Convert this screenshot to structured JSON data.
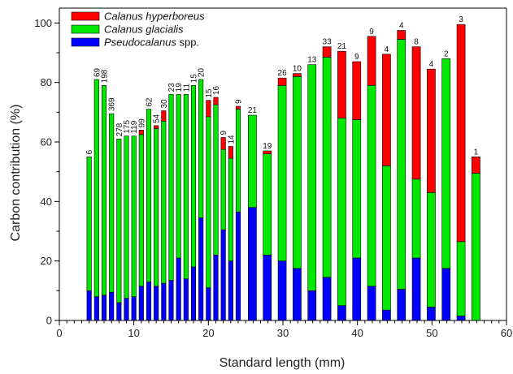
{
  "chart_data": {
    "type": "bar",
    "stacked": true,
    "title": "",
    "xlabel": "Standard length (mm)",
    "ylabel": "Carbon contribution (%)",
    "xlim": [
      0,
      60
    ],
    "ylim": [
      0,
      105
    ],
    "x_major_ticks": [
      0,
      10,
      20,
      30,
      40,
      50,
      60
    ],
    "x_tick_labels": [
      "0",
      "10",
      "20",
      "30",
      "40",
      "50",
      "60"
    ],
    "y_major_ticks": [
      0,
      20,
      40,
      60,
      80,
      100
    ],
    "y_tick_labels": [
      "0",
      "20",
      "40",
      "60",
      "80",
      "100"
    ],
    "x_minor_step": 1,
    "y_minor_step": 10,
    "grid": false,
    "legend_placement": "top-left",
    "legend": [
      {
        "italic": "Calanus hyperboreus",
        "suffix": "",
        "color": "#ff0000"
      },
      {
        "italic": "Calanus glacialis",
        "suffix": "",
        "color": "#00e800"
      },
      {
        "italic": "Pseudocalanus",
        "suffix": " spp.",
        "color": "#0000ff"
      }
    ],
    "bars": [
      {
        "x": 4,
        "width": 0.6,
        "pseudocalanus": 10,
        "glacialis": 45,
        "hyperboreus": 0,
        "label": "6"
      },
      {
        "x": 5,
        "width": 0.6,
        "pseudocalanus": 8,
        "glacialis": 73,
        "hyperboreus": 0,
        "label": "69"
      },
      {
        "x": 6,
        "width": 0.6,
        "pseudocalanus": 8.5,
        "glacialis": 70.5,
        "hyperboreus": 0,
        "label": "198"
      },
      {
        "x": 7,
        "width": 0.6,
        "pseudocalanus": 9.5,
        "glacialis": 60,
        "hyperboreus": 0,
        "label": "369"
      },
      {
        "x": 8,
        "width": 0.6,
        "pseudocalanus": 6,
        "glacialis": 55,
        "hyperboreus": 0,
        "label": "278"
      },
      {
        "x": 9,
        "width": 0.6,
        "pseudocalanus": 7.5,
        "glacialis": 54.5,
        "hyperboreus": 0,
        "label": "175"
      },
      {
        "x": 10,
        "width": 0.6,
        "pseudocalanus": 8,
        "glacialis": 54,
        "hyperboreus": 0,
        "label": "119"
      },
      {
        "x": 11,
        "width": 0.6,
        "pseudocalanus": 11.5,
        "glacialis": 51,
        "hyperboreus": 1.5,
        "label": "99"
      },
      {
        "x": 12,
        "width": 0.6,
        "pseudocalanus": 13,
        "glacialis": 58,
        "hyperboreus": 0,
        "label": "62"
      },
      {
        "x": 13,
        "width": 0.6,
        "pseudocalanus": 11.5,
        "glacialis": 53,
        "hyperboreus": 1,
        "label": "54"
      },
      {
        "x": 14,
        "width": 0.6,
        "pseudocalanus": 12.5,
        "glacialis": 54.5,
        "hyperboreus": 3.5,
        "label": "30"
      },
      {
        "x": 15,
        "width": 0.6,
        "pseudocalanus": 13.5,
        "glacialis": 62.5,
        "hyperboreus": 0,
        "label": "23"
      },
      {
        "x": 16,
        "width": 0.6,
        "pseudocalanus": 21,
        "glacialis": 55,
        "hyperboreus": 0,
        "label": "19"
      },
      {
        "x": 17,
        "width": 0.6,
        "pseudocalanus": 14,
        "glacialis": 62,
        "hyperboreus": 0,
        "label": "11"
      },
      {
        "x": 18,
        "width": 0.6,
        "pseudocalanus": 18,
        "glacialis": 61,
        "hyperboreus": 0,
        "label": "15"
      },
      {
        "x": 19,
        "width": 0.6,
        "pseudocalanus": 34.5,
        "glacialis": 46.5,
        "hyperboreus": 0,
        "label": "20"
      },
      {
        "x": 20,
        "width": 0.6,
        "pseudocalanus": 11,
        "glacialis": 57.5,
        "hyperboreus": 5.5,
        "label": "15"
      },
      {
        "x": 21,
        "width": 0.6,
        "pseudocalanus": 22,
        "glacialis": 50.5,
        "hyperboreus": 2.5,
        "label": "16"
      },
      {
        "x": 22,
        "width": 0.6,
        "pseudocalanus": 30.5,
        "glacialis": 27,
        "hyperboreus": 4,
        "label": "9"
      },
      {
        "x": 23,
        "width": 0.6,
        "pseudocalanus": 20,
        "glacialis": 34.5,
        "hyperboreus": 4,
        "label": "14"
      },
      {
        "x": 24,
        "width": 0.6,
        "pseudocalanus": 36.5,
        "glacialis": 34.5,
        "hyperboreus": 1,
        "label": "9"
      },
      {
        "x": 25.9,
        "width": 1.1,
        "pseudocalanus": 38,
        "glacialis": 31,
        "hyperboreus": 0,
        "label": "21"
      },
      {
        "x": 27.9,
        "width": 1.1,
        "pseudocalanus": 22,
        "glacialis": 34,
        "hyperboreus": 1,
        "label": "19"
      },
      {
        "x": 29.9,
        "width": 1.1,
        "pseudocalanus": 20,
        "glacialis": 59,
        "hyperboreus": 2.5,
        "label": "26"
      },
      {
        "x": 31.9,
        "width": 1.1,
        "pseudocalanus": 17.5,
        "glacialis": 64.5,
        "hyperboreus": 1,
        "label": "10"
      },
      {
        "x": 33.9,
        "width": 1.1,
        "pseudocalanus": 10,
        "glacialis": 76,
        "hyperboreus": 0,
        "label": "13"
      },
      {
        "x": 35.9,
        "width": 1.1,
        "pseudocalanus": 14.5,
        "glacialis": 74,
        "hyperboreus": 3.5,
        "label": "33"
      },
      {
        "x": 37.9,
        "width": 1.1,
        "pseudocalanus": 5,
        "glacialis": 63,
        "hyperboreus": 22.5,
        "label": "21"
      },
      {
        "x": 39.9,
        "width": 1.1,
        "pseudocalanus": 21,
        "glacialis": 46.5,
        "hyperboreus": 19.5,
        "label": "9"
      },
      {
        "x": 41.9,
        "width": 1.1,
        "pseudocalanus": 11.5,
        "glacialis": 67.5,
        "hyperboreus": 16.5,
        "label": "9"
      },
      {
        "x": 43.9,
        "width": 1.1,
        "pseudocalanus": 3.5,
        "glacialis": 48.5,
        "hyperboreus": 37.5,
        "label": "4"
      },
      {
        "x": 45.9,
        "width": 1.1,
        "pseudocalanus": 10.5,
        "glacialis": 84,
        "hyperboreus": 3,
        "label": "4"
      },
      {
        "x": 47.9,
        "width": 1.1,
        "pseudocalanus": 21,
        "glacialis": 26.5,
        "hyperboreus": 44.5,
        "label": "8"
      },
      {
        "x": 49.9,
        "width": 1.1,
        "pseudocalanus": 4.5,
        "glacialis": 38.5,
        "hyperboreus": 41.5,
        "label": "4"
      },
      {
        "x": 51.9,
        "width": 1.1,
        "pseudocalanus": 17.5,
        "glacialis": 70.5,
        "hyperboreus": 0,
        "label": "2"
      },
      {
        "x": 53.9,
        "width": 1.1,
        "pseudocalanus": 1.5,
        "glacialis": 25,
        "hyperboreus": 73,
        "label": "3"
      },
      {
        "x": 55.9,
        "width": 1.1,
        "pseudocalanus": 0,
        "glacialis": 49.5,
        "hyperboreus": 5.5,
        "label": "1"
      }
    ]
  }
}
